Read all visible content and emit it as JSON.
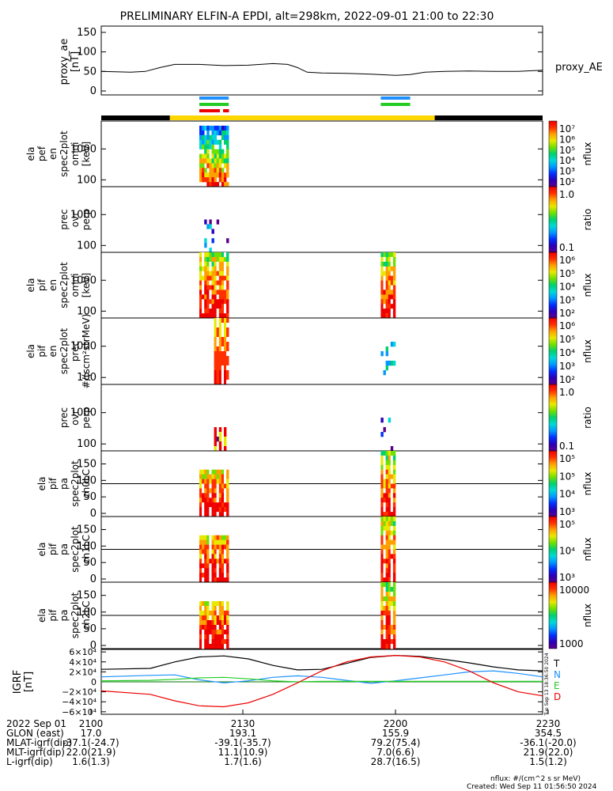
{
  "title": "PRELIMINARY ELFIN-A EPDI, alt=298km, 2022-09-01 21:00 to 22:30",
  "colors": {
    "black": "#000000",
    "yellow": "#ffd700",
    "blue": "#1e90ff",
    "green": "#22cc22",
    "red": "#ee0000"
  },
  "time_range": [
    "21:00",
    "22:30"
  ],
  "overview_bars": [
    {
      "color_key": "black",
      "t0": "21:00",
      "t1": "21:14"
    },
    {
      "color_key": "yellow",
      "t0": "21:14",
      "t1": "22:08"
    },
    {
      "color_key": "black",
      "t0": "22:08",
      "t1": "22:30"
    }
  ],
  "science_zone_markers": [
    {
      "t0": "21:20",
      "t1": "21:26",
      "colors": [
        "blue",
        "green",
        "red"
      ]
    },
    {
      "t0": "21:57",
      "t1": "22:03",
      "colors": [
        "blue",
        "green"
      ]
    }
  ],
  "chart_data": [
    {
      "type": "line",
      "panel": "proxy_ae",
      "ylabel_lines": [
        "proxy_ae",
        "[nT]"
      ],
      "series_label": "proxy_AE",
      "ylim": [
        0,
        160
      ],
      "yticks": [
        "150",
        "100",
        "50",
        "0"
      ],
      "x": [
        "21:00",
        "21:06",
        "21:09",
        "21:12",
        "21:15",
        "21:20",
        "21:25",
        "21:30",
        "21:35",
        "21:38",
        "21:40",
        "21:42",
        "21:45",
        "21:50",
        "21:55",
        "22:00",
        "22:03",
        "22:06",
        "22:10",
        "22:15",
        "22:20",
        "22:25",
        "22:30"
      ],
      "values": [
        50,
        48,
        50,
        60,
        68,
        68,
        65,
        66,
        70,
        68,
        60,
        48,
        46,
        45,
        43,
        40,
        42,
        48,
        50,
        51,
        50,
        50,
        53
      ]
    },
    {
      "type": "heatmap",
      "panel": "ela pef en spec2plot omni",
      "ylabel_lines": [
        "ela",
        "pef",
        "en",
        "spec2plot",
        "omni",
        "[keV]"
      ],
      "ylog": true,
      "ylim": [
        60,
        8000
      ],
      "yticks": [
        "1000",
        "100"
      ],
      "colorbar": {
        "label": "nflux",
        "ticks": [
          "10⁷",
          "10⁶",
          "10⁵",
          "10⁴",
          "10³",
          "10²"
        ]
      },
      "intervals": [
        {
          "t0": "21:20",
          "t1": "21:26"
        }
      ]
    },
    {
      "type": "heatmap",
      "panel": "prec ovr perp",
      "ylabel_lines": [
        "prec",
        "ovr",
        "perp"
      ],
      "ylog": true,
      "ylim": [
        60,
        8000
      ],
      "yticks": [
        "1000",
        "100"
      ],
      "colorbar": {
        "label": "ratio",
        "ticks": [
          "1.0",
          "0.1"
        ]
      },
      "intervals": [
        {
          "t0": "21:21",
          "t1": "21:26"
        }
      ]
    },
    {
      "type": "heatmap",
      "panel": "ela pif en spec2plot omni",
      "ylabel_lines": [
        "ela",
        "pif",
        "en",
        "spec2plot",
        "omni",
        "[keV]"
      ],
      "ylog": true,
      "ylim": [
        60,
        8000
      ],
      "yticks": [
        "1000",
        "100"
      ],
      "colorbar": {
        "label": "nflux",
        "ticks": [
          "10⁶",
          "10⁵",
          "10⁴",
          "10³",
          "10²"
        ]
      },
      "intervals": [
        {
          "t0": "21:20",
          "t1": "21:26"
        },
        {
          "t0": "21:57",
          "t1": "22:00"
        }
      ]
    },
    {
      "type": "heatmap",
      "panel": "ela pif en spec2plot prec",
      "ylabel_lines": [
        "ela",
        "pif",
        "en",
        "spec2plot",
        "prec",
        "#/(scm²strMeV)"
      ],
      "ylog": true,
      "ylim": [
        60,
        8000
      ],
      "yticks": [
        "1000",
        "100"
      ],
      "colorbar": {
        "label": "nflux",
        "ticks": [
          "10⁶",
          "10⁵",
          "10⁴",
          "10³",
          "10²"
        ]
      },
      "intervals": [
        {
          "t0": "21:23",
          "t1": "21:26"
        },
        {
          "t0": "21:57",
          "t1": "22:00"
        }
      ]
    },
    {
      "type": "heatmap",
      "panel": "prec ovr perp (ion)",
      "ylabel_lines": [
        "prec",
        "ovr",
        "perp"
      ],
      "ylog": true,
      "ylim": [
        60,
        8000
      ],
      "yticks": [
        "1000",
        "100"
      ],
      "colorbar": {
        "label": "ratio",
        "ticks": [
          "1.0",
          "0.1"
        ]
      },
      "intervals": [
        {
          "t0": "21:23",
          "t1": "21:26"
        },
        {
          "t0": "21:57",
          "t1": "22:00"
        }
      ]
    },
    {
      "type": "heatmap",
      "panel": "ela pif pa spec2plot ch0LC",
      "ylabel_lines": [
        "ela",
        "pif",
        "pa",
        "spec2plot",
        "ch0LC"
      ],
      "ylim": [
        0,
        180
      ],
      "yticks": [
        "150",
        "100",
        "50",
        "0"
      ],
      "colorbar": {
        "label": "nflux",
        "ticks": [
          "10⁵",
          "10⁵",
          "10⁴",
          "10³"
        ]
      },
      "intervals": [
        {
          "t0": "21:20",
          "t1": "21:26"
        },
        {
          "t0": "21:57",
          "t1": "22:00"
        }
      ]
    },
    {
      "type": "heatmap",
      "panel": "ela pif pa spec2plot ch1LC",
      "ylabel_lines": [
        "ela",
        "pif",
        "pa",
        "spec2plot",
        "ch1LC"
      ],
      "ylim": [
        0,
        180
      ],
      "yticks": [
        "150",
        "100",
        "50",
        "0"
      ],
      "colorbar": {
        "label": "nflux",
        "ticks": [
          "10⁵",
          "10⁴",
          "10³"
        ]
      },
      "intervals": [
        {
          "t0": "21:20",
          "t1": "21:26"
        },
        {
          "t0": "21:57",
          "t1": "22:00"
        }
      ]
    },
    {
      "type": "heatmap",
      "panel": "ela pif pa spec2plot ch2LC",
      "ylabel_lines": [
        "ela",
        "pif",
        "pa",
        "spec2plot",
        "ch2LC"
      ],
      "ylim": [
        0,
        180
      ],
      "yticks": [
        "150",
        "100",
        "50",
        "0"
      ],
      "colorbar": {
        "label": "nflux",
        "ticks": [
          "10000",
          "1000"
        ]
      },
      "intervals": [
        {
          "t0": "21:20",
          "t1": "21:26"
        },
        {
          "t0": "21:57",
          "t1": "22:00"
        }
      ]
    },
    {
      "type": "line",
      "panel": "IGRF",
      "ylabel_lines": [
        "IGRF",
        "[nT]"
      ],
      "ylim": [
        -65000,
        65000
      ],
      "yticks": [
        "6×10⁴",
        "4×10⁴",
        "2×10⁴",
        "0",
        "−2×10⁴",
        "−4×10⁴",
        "−6×10⁴"
      ],
      "legend": [
        "T",
        "N",
        "E",
        "D"
      ],
      "x": [
        "21:00",
        "21:10",
        "21:15",
        "21:20",
        "21:25",
        "21:30",
        "21:35",
        "21:40",
        "21:45",
        "21:50",
        "21:55",
        "22:00",
        "22:05",
        "22:10",
        "22:15",
        "22:20",
        "22:25",
        "22:30"
      ],
      "series": [
        {
          "name": "T",
          "color_key": "black",
          "values": [
            25000,
            27000,
            40000,
            50000,
            52000,
            46000,
            33000,
            24000,
            25000,
            37000,
            49000,
            53000,
            51000,
            45000,
            38000,
            30000,
            24000,
            22000
          ]
        },
        {
          "name": "N",
          "color_key": "blue",
          "values": [
            10000,
            13000,
            14000,
            4000,
            -2000,
            2000,
            9000,
            12000,
            9000,
            3000,
            -3000,
            2000,
            8000,
            14000,
            20000,
            22000,
            17000,
            10000
          ]
        },
        {
          "name": "E",
          "color_key": "green",
          "values": [
            2000,
            3000,
            5000,
            8000,
            9000,
            6000,
            2000,
            0,
            1000,
            1000,
            1000,
            1000,
            1000,
            1000,
            1000,
            1000,
            1000,
            1000
          ]
        },
        {
          "name": "D",
          "color_key": "red",
          "values": [
            -18000,
            -25000,
            -38000,
            -48000,
            -50000,
            -42000,
            -25000,
            -2000,
            22000,
            40000,
            50000,
            53000,
            50000,
            40000,
            22000,
            -2000,
            -20000,
            -28000
          ]
        }
      ]
    }
  ],
  "side_stamp": "Tue Sep 13 18:36:50 2024",
  "ephemeris": {
    "tick_labels": [
      "2100",
      "2130",
      "2200",
      "2230"
    ],
    "rows": [
      {
        "label": "2022 Sep 01",
        "values": [
          "",
          "",
          "",
          ""
        ]
      },
      {
        "label": "GLON (east)",
        "values": [
          "17.0",
          "193.1",
          "155.9",
          "354.5"
        ]
      },
      {
        "label": "MLAT-igrf(dip)",
        "values": [
          "-37.1(-24.7)",
          "-39.1(-35.7)",
          "79.2(75.4)",
          "-36.1(-20.0)"
        ]
      },
      {
        "label": "MLT-igrf(dip)",
        "values": [
          "22.0(21.9)",
          "11.1(10.9)",
          "7.0(6.6)",
          "21.9(22.0)"
        ]
      },
      {
        "label": "L-igrf(dip)",
        "values": [
          "1.6(1.3)",
          "1.7(1.6)",
          "28.7(16.5)",
          "1.5(1.2)"
        ]
      }
    ]
  },
  "footer": {
    "units": "nflux: #/(cm^2 s sr MeV)",
    "created": "Created: Wed Sep 11 01:56:50 2024"
  }
}
